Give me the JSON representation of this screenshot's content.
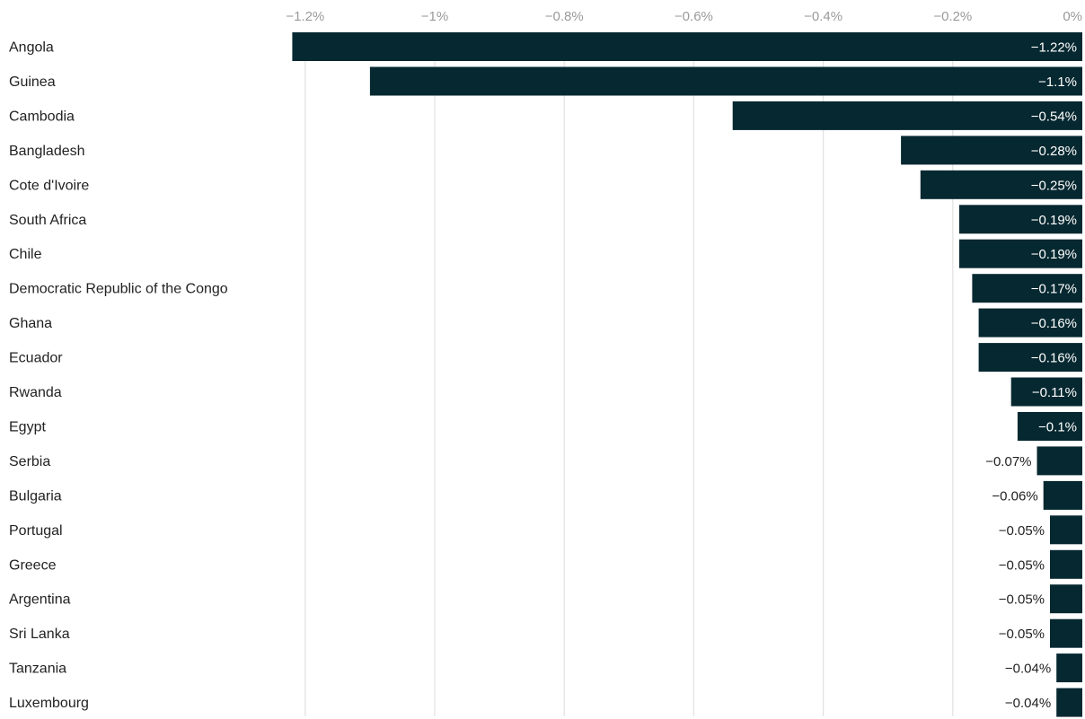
{
  "chart_data": {
    "type": "bar",
    "orientation": "horizontal",
    "title": "",
    "xlabel": "",
    "ylabel": "",
    "xlim": [
      -1.22,
      0
    ],
    "x_ticks": [
      -1.2,
      -1.0,
      -0.8,
      -0.6,
      -0.4,
      -0.2,
      0
    ],
    "x_tick_labels": [
      "−1.2%",
      "−1%",
      "−0.8%",
      "−0.6%",
      "−0.4%",
      "−0.2%",
      "0%"
    ],
    "x_axis_position": "top",
    "grid": true,
    "legend": "none",
    "bar_color": "#062830",
    "categories": [
      "Angola",
      "Guinea",
      "Cambodia",
      "Bangladesh",
      "Cote d'Ivoire",
      "South Africa",
      "Chile",
      "Democratic Republic of the Congo",
      "Ghana",
      "Ecuador",
      "Rwanda",
      "Egypt",
      "Serbia",
      "Bulgaria",
      "Portugal",
      "Greece",
      "Argentina",
      "Sri Lanka",
      "Tanzania",
      "Luxembourg"
    ],
    "values": [
      -1.22,
      -1.1,
      -0.54,
      -0.28,
      -0.25,
      -0.19,
      -0.19,
      -0.17,
      -0.16,
      -0.16,
      -0.11,
      -0.1,
      -0.07,
      -0.06,
      -0.05,
      -0.05,
      -0.05,
      -0.05,
      -0.04,
      -0.04
    ],
    "data_labels": [
      "−1.22%",
      "−1.1%",
      "−0.54%",
      "−0.28%",
      "−0.25%",
      "−0.19%",
      "−0.19%",
      "−0.17%",
      "−0.16%",
      "−0.16%",
      "−0.11%",
      "−0.1%",
      "−0.07%",
      "−0.06%",
      "−0.05%",
      "−0.05%",
      "−0.05%",
      "−0.05%",
      "−0.04%",
      "−0.04%"
    ]
  }
}
